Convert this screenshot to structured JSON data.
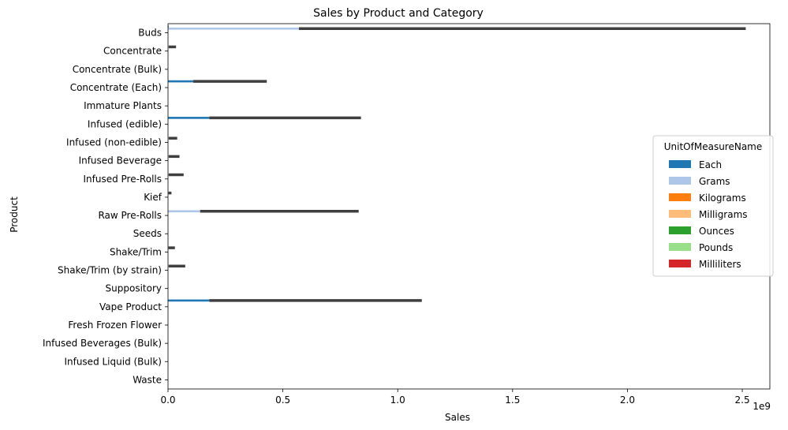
{
  "chart_data": {
    "type": "bar",
    "orientation": "horizontal",
    "title": "Sales by Product and Category",
    "xlabel": "Sales",
    "ylabel": "Product",
    "x_offset_label": "1e9",
    "xlim": [
      0,
      2.62
    ],
    "x_ticks": [
      0,
      0.5,
      1.0,
      1.5,
      2.0,
      2.5
    ],
    "x_tick_labels": [
      "0.0",
      "0.5",
      "1.0",
      "1.5",
      "2.0",
      "2.5"
    ],
    "grid": false,
    "categories": [
      "Buds",
      "Concentrate",
      "Concentrate (Bulk)",
      "Concentrate (Each)",
      "Immature Plants",
      "Infused (edible)",
      "Infused (non-edible)",
      "Infused Beverage",
      "Infused Pre-Rolls",
      "Kief",
      "Raw Pre-Rolls",
      "Seeds",
      "Shake/Trim",
      "Shake/Trim (by strain)",
      "Suppository",
      "Vape Product",
      "Fresh Frozen Flower",
      "Infused Beverages (Bulk)",
      "Infused Liquid (Bulk)",
      "Waste"
    ],
    "legend": {
      "title": "UnitOfMeasureName",
      "placement": "center-right"
    },
    "series": [
      {
        "name": "Each",
        "color": "#1f77b4",
        "values": [
          0.003,
          0,
          0,
          0.11,
          0,
          0.18,
          0,
          0,
          0,
          0,
          0,
          0,
          0,
          0,
          0,
          0.18,
          0,
          0,
          0,
          0
        ],
        "ci_high": [
          0,
          0,
          0,
          0.43,
          0,
          0.84,
          0,
          0,
          0,
          0,
          0,
          0,
          0,
          0,
          0,
          1.105,
          0,
          0,
          0,
          0
        ]
      },
      {
        "name": "Grams",
        "color": "#aec7e8",
        "values": [
          0.57,
          0.003,
          0,
          0,
          0,
          0,
          0.003,
          0.003,
          0.003,
          0.002,
          0.14,
          0,
          0.002,
          0.003,
          0,
          0,
          0,
          0,
          0,
          0
        ],
        "ci_high": [
          2.515,
          0.035,
          0,
          0,
          0,
          0,
          0.04,
          0.05,
          0.068,
          0.015,
          0.83,
          0,
          0.03,
          0.075,
          0,
          0,
          0,
          0,
          0,
          0
        ]
      },
      {
        "name": "Kilograms",
        "color": "#ff7f0e",
        "values": [
          0,
          0,
          0,
          0,
          0,
          0,
          0,
          0,
          0,
          0,
          0,
          0,
          0,
          0,
          0,
          0,
          0,
          0,
          0,
          0
        ]
      },
      {
        "name": "Milligrams",
        "color": "#ffbb78",
        "values": [
          0,
          0,
          0,
          0,
          0,
          0,
          0,
          0,
          0,
          0,
          0,
          0,
          0,
          0,
          0,
          0,
          0,
          0,
          0,
          0
        ]
      },
      {
        "name": "Ounces",
        "color": "#2ca02c",
        "values": [
          0,
          0,
          0,
          0,
          0,
          0,
          0,
          0,
          0,
          0,
          0,
          0,
          0,
          0,
          0,
          0,
          0,
          0,
          0,
          0
        ]
      },
      {
        "name": "Pounds",
        "color": "#98df8a",
        "values": [
          0,
          0,
          0,
          0,
          0,
          0,
          0,
          0,
          0,
          0,
          0,
          0,
          0,
          0,
          0,
          0,
          0,
          0,
          0,
          0
        ]
      },
      {
        "name": "Milliliters",
        "color": "#d62728",
        "values": [
          0,
          0,
          0,
          0,
          0,
          0,
          0,
          0,
          0,
          0,
          0,
          0,
          0,
          0,
          0,
          0,
          0,
          0,
          0,
          0
        ]
      }
    ]
  }
}
